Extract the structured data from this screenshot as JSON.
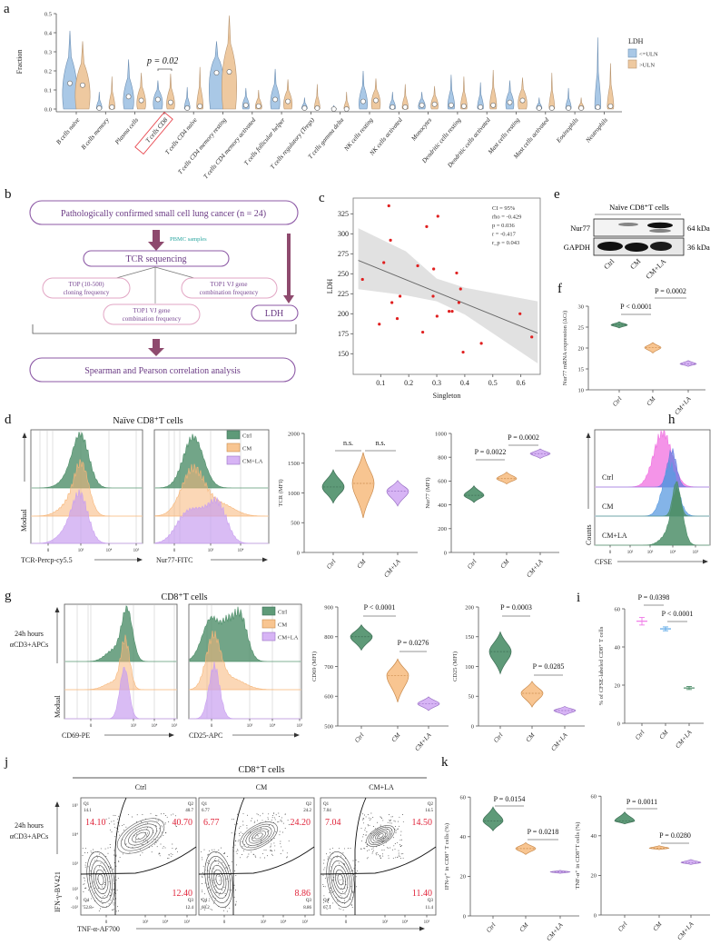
{
  "panel_labels": {
    "a": "a",
    "b": "b",
    "c": "c",
    "d": "d",
    "e": "e",
    "f": "f",
    "g": "g",
    "h": "h",
    "i": "i",
    "j": "j",
    "k": "k"
  },
  "colors": {
    "ctrl": "#5e9a78",
    "cm": "#f8c591",
    "cm_la": "#d7b4f5",
    "uln_low": "#a9c8e6",
    "uln_high": "#eec9a0",
    "highlight": "#e8474f",
    "flow_accent": "#8d5aa6",
    "pbmc": "#2aa6a0"
  },
  "flowchart": {
    "cohort": "Pathologically confirmed small cell lung cancer (n = 24)",
    "sample": "PBMC samples",
    "sequencing": "TCR sequencing",
    "metric1_l1": "TOP (10-500)",
    "metric1_l2": "cloning frequency",
    "metric2_l1": "TOP1 VJ gene",
    "metric2_l2": "combination frequency",
    "metric3_l1": "TOP1 VJ gene",
    "metric3_l2": "combination frequency",
    "ldh": "LDH",
    "analysis": "Spearman and Pearson correlation analysis"
  },
  "western_blot": {
    "title": "Naïve CD8⁺T cells",
    "proteins": [
      {
        "name": "Nur77",
        "size": "64 kDa"
      },
      {
        "name": "GAPDH",
        "size": "36 kDa"
      }
    ],
    "lanes": [
      "Ctrl",
      "CM",
      "CM+LA"
    ]
  },
  "histograms_d": {
    "title": "Naïve CD8⁺T cells",
    "ylabel": "Modual",
    "xlabels": [
      "TCR-Percp-cy5.5",
      "Nur77-FITC"
    ],
    "legend": [
      "Ctrl",
      "CM",
      "CM+LA"
    ],
    "ticks1": [
      "0",
      "10³",
      "10⁴",
      "10⁵"
    ],
    "ticks2": [
      "0",
      "10³",
      "10⁴"
    ]
  },
  "histograms_g": {
    "title": "CD8⁺T cells",
    "condition_l1": "24h hours",
    "condition_l2": "αCD3+APCs",
    "ylabel": "Modual",
    "xlabels": [
      "CD69-PE",
      "CD25-APC"
    ],
    "legend": [
      "Ctrl",
      "CM",
      "CM+LA"
    ],
    "ticks1": [
      "0",
      "10³",
      "10⁴",
      "10⁵"
    ],
    "ticks2": [
      "0",
      "10³",
      "10⁴",
      "10⁵"
    ]
  },
  "histogram_h": {
    "rows": [
      "Ctrl",
      "CM",
      "CM+LA"
    ],
    "ylabel": "Counts",
    "xlabel": "CFSE",
    "ticks": [
      "0",
      "10²",
      "10³",
      "10⁴",
      "10⁵"
    ]
  },
  "flow_j": {
    "title": "CD8⁺T cells",
    "condition_l1": "24h hours",
    "condition_l2": "αCD3+APCs",
    "ylabel": "IFN-γ-BV421",
    "xlabel": "TNF-α-AF700",
    "yticks": [
      "10⁵",
      "10⁴",
      "10³",
      "10²",
      "0",
      "-10²"
    ],
    "xticks": [
      "0",
      "10³",
      "10⁴",
      "10⁵"
    ],
    "quadrant_names": [
      "Q1",
      "Q2",
      "Q3",
      "Q4"
    ],
    "plots": [
      {
        "title": "Ctrl",
        "q1": "14.1",
        "q2": "40.7",
        "q3": "12.4",
        "q4": "52.8",
        "q1_big": "14.10",
        "q2_big": "40.70",
        "q3_big": "12.40"
      },
      {
        "title": "CM",
        "q1": "6.77",
        "q2": "24.2",
        "q3": "8.86",
        "q4": "60.2",
        "q1_big": "6.77",
        "q2_big": "24.20",
        "q3_big": "8.86"
      },
      {
        "title": "CM+LA",
        "q1": "7.04",
        "q2": "14.5",
        "q3": "11.4",
        "q4": "67.1",
        "q1_big": "7.04",
        "q2_big": "14.50",
        "q3_big": "11.40"
      }
    ]
  },
  "chart_data": [
    {
      "id": "a",
      "type": "violin",
      "ylabel": "Fraction",
      "yticks": [
        0,
        0.1,
        0.2,
        0.3,
        0.4,
        0.5
      ],
      "ytick_labels": [
        "0.0",
        "0.1",
        "0.2",
        "0.3",
        "0.4",
        "0.5"
      ],
      "categories": [
        "B cells naive",
        "B cells memory",
        "Plasma cells",
        "T cells CD8",
        "T cells CD4 naive",
        "T cells CD4 memory resting",
        "T cells CD4 memory activated",
        "T cells follicular helper",
        "T cells regulatory (Tregs)",
        "T cells gamma delta",
        "NK cells resting",
        "NK cells activated",
        "Monocytes",
        "Dendritic cells resting",
        "Dendritic cells activated",
        "Mast cells resting",
        "Mast cells activated",
        "Eosinophils",
        "Neutrophils"
      ],
      "highlight": "T cells CD8",
      "legend_title": "LDH",
      "legend": "right",
      "annotation": "p = 0.02",
      "series": [
        {
          "name": "<=ULN",
          "median": [
            0.135,
            0.005,
            0.065,
            0.05,
            0.005,
            0.19,
            0.02,
            0.05,
            0.005,
            0.0,
            0.04,
            0.01,
            0.02,
            0.02,
            0.01,
            0.035,
            0.005,
            0.005,
            0.01
          ],
          "max": [
            0.41,
            0.09,
            0.26,
            0.15,
            0.115,
            0.355,
            0.11,
            0.21,
            0.06,
            0.02,
            0.2,
            0.09,
            0.09,
            0.18,
            0.14,
            0.15,
            0.06,
            0.11,
            0.375
          ]
        },
        {
          "name": ">ULN",
          "median": [
            0.125,
            0.01,
            0.045,
            0.035,
            0.015,
            0.195,
            0.015,
            0.04,
            0.005,
            0.0,
            0.045,
            0.01,
            0.025,
            0.015,
            0.02,
            0.045,
            0.005,
            0.005,
            0.015
          ],
          "max": [
            0.355,
            0.17,
            0.19,
            0.185,
            0.22,
            0.49,
            0.1,
            0.155,
            0.13,
            0.09,
            0.16,
            0.13,
            0.12,
            0.17,
            0.205,
            0.165,
            0.19,
            0.06,
            0.24
          ]
        }
      ]
    },
    {
      "id": "c",
      "type": "scatter",
      "xlabel": "Singleton",
      "ylabel": "LDH",
      "xticks": [
        0.1,
        0.2,
        0.3,
        0.4,
        0.5,
        0.6
      ],
      "yticks": [
        150,
        175,
        200,
        225,
        250,
        275,
        300,
        325
      ],
      "x": [
        0.035,
        0.095,
        0.111,
        0.129,
        0.135,
        0.14,
        0.159,
        0.169,
        0.232,
        0.25,
        0.264,
        0.287,
        0.289,
        0.301,
        0.304,
        0.344,
        0.355,
        0.371,
        0.379,
        0.385,
        0.394,
        0.459,
        0.597,
        0.639
      ],
      "y": [
        243,
        187,
        264,
        335,
        292,
        214,
        194,
        222,
        260,
        177,
        309,
        222,
        256,
        197,
        322,
        203,
        203,
        251,
        214,
        231,
        152,
        163,
        200,
        171
      ],
      "fit": {
        "x": [
          0.02,
          0.66
        ],
        "y": [
          266.7,
          175.8
        ]
      },
      "ci_band": {
        "x": [
          0.02,
          0.19,
          0.3,
          0.4,
          0.66
        ],
        "upper": [
          307,
          278,
          244,
          232.6,
          215.5
        ],
        "lower": [
          230.7,
          223,
          215.5,
          199,
          138
        ]
      },
      "stats": [
        "CI = 95%",
        "rho = -0.429",
        "p = 0.036",
        "r = -0.417",
        "r_p = 0.043"
      ]
    },
    {
      "id": "f",
      "type": "violin",
      "ylabel": "Nur77 mRNA expression (ΔCt)",
      "yticks": [
        10,
        15,
        20,
        25,
        30
      ],
      "categories": [
        "Ctrl",
        "CM",
        "CM+LA"
      ],
      "median": [
        25.5,
        20.1,
        16.2
      ],
      "min": [
        24.8,
        18.8,
        15.6
      ],
      "max": [
        26.3,
        21.3,
        17.0
      ],
      "comparisons": [
        {
          "a": 0,
          "b": 1,
          "label": "P < 0.0001"
        },
        {
          "a": 1,
          "b": 2,
          "label": "P = 0.0002"
        }
      ]
    },
    {
      "id": "d-tcr",
      "type": "violin",
      "ylabel": "TCR (MFI)",
      "yticks": [
        0,
        500,
        1000,
        1500,
        2000
      ],
      "categories": [
        "Ctrl",
        "CM",
        "CM+LA"
      ],
      "median": [
        1100,
        1160,
        1030
      ],
      "min": [
        830,
        580,
        780
      ],
      "max": [
        1390,
        1680,
        1210
      ],
      "comparisons": [
        {
          "a": 0,
          "b": 1,
          "label": "n.s."
        },
        {
          "a": 1,
          "b": 2,
          "label": "n.s."
        }
      ]
    },
    {
      "id": "d-nur77",
      "type": "violin",
      "ylabel": "Nur77 (MFI)",
      "yticks": [
        0,
        200,
        400,
        600,
        800,
        1000
      ],
      "categories": [
        "Ctrl",
        "CM",
        "CM+LA"
      ],
      "median": [
        480,
        620,
        830
      ],
      "min": [
        420,
        575,
        790
      ],
      "max": [
        560,
        675,
        870
      ],
      "comparisons": [
        {
          "a": 0,
          "b": 1,
          "label": "P = 0.0022"
        },
        {
          "a": 1,
          "b": 2,
          "label": "P = 0.0002"
        }
      ]
    },
    {
      "id": "i",
      "type": "errorbar",
      "ylabel": "% of CFSE-labeled CD8⁺ T cells",
      "yticks": [
        0,
        20,
        40,
        60
      ],
      "categories": [
        "Ctrl",
        "CM",
        "CM+LA"
      ],
      "mean": [
        53.5,
        49.5,
        18.5
      ],
      "err": [
        2.0,
        1.0,
        0.8
      ],
      "comparisons": [
        {
          "a": 0,
          "b": 1,
          "label": "P = 0.0398"
        },
        {
          "a": 1,
          "b": 2,
          "label": "P < 0.0001"
        }
      ]
    },
    {
      "id": "g-cd69",
      "type": "violin",
      "ylabel": "CD69 (MFI)",
      "yticks": [
        500,
        600,
        700,
        800,
        900
      ],
      "categories": [
        "Ctrl",
        "CM",
        "CM+LA"
      ],
      "median": [
        800,
        670,
        575
      ],
      "min": [
        755,
        580,
        552
      ],
      "max": [
        840,
        725,
        598
      ],
      "comparisons": [
        {
          "a": 0,
          "b": 1,
          "label": "P < 0.0001"
        },
        {
          "a": 1,
          "b": 2,
          "label": "P = 0.0276"
        }
      ]
    },
    {
      "id": "g-cd25",
      "type": "violin",
      "ylabel": "CD25 (MFI)",
      "yticks": [
        0,
        50,
        100,
        150,
        200
      ],
      "categories": [
        "Ctrl",
        "CM",
        "CM+LA"
      ],
      "median": [
        125,
        55,
        26
      ],
      "min": [
        88,
        32,
        18
      ],
      "max": [
        158,
        75,
        33
      ],
      "comparisons": [
        {
          "a": 0,
          "b": 1,
          "label": "P = 0.0003"
        },
        {
          "a": 1,
          "b": 2,
          "label": "P = 0.0285"
        }
      ]
    },
    {
      "id": "k-ifn",
      "type": "violin",
      "ylabel": "IFN-γ⁺ in CD8⁺ T cells (%)",
      "yticks": [
        0,
        20,
        40,
        60
      ],
      "categories": [
        "Ctrl",
        "CM",
        "CM+LA"
      ],
      "median": [
        48,
        34,
        22.2
      ],
      "min": [
        43,
        31,
        21.5
      ],
      "max": [
        55,
        37,
        23
      ],
      "comparisons": [
        {
          "a": 0,
          "b": 1,
          "label": "P = 0.0154"
        },
        {
          "a": 1,
          "b": 2,
          "label": "P = 0.0218"
        }
      ]
    },
    {
      "id": "k-tnf",
      "type": "violin",
      "ylabel": "TNF-α⁺ in CD8⁺T cells (%)",
      "yticks": [
        0,
        20,
        40,
        60
      ],
      "categories": [
        "Ctrl",
        "CM",
        "CM+LA"
      ],
      "median": [
        47.5,
        33.7,
        26.5
      ],
      "min": [
        46,
        33,
        25.5
      ],
      "max": [
        52,
        35,
        28
      ],
      "comparisons": [
        {
          "a": 0,
          "b": 1,
          "label": "P = 0.0011"
        },
        {
          "a": 1,
          "b": 2,
          "label": "P = 0.0280"
        }
      ]
    }
  ]
}
